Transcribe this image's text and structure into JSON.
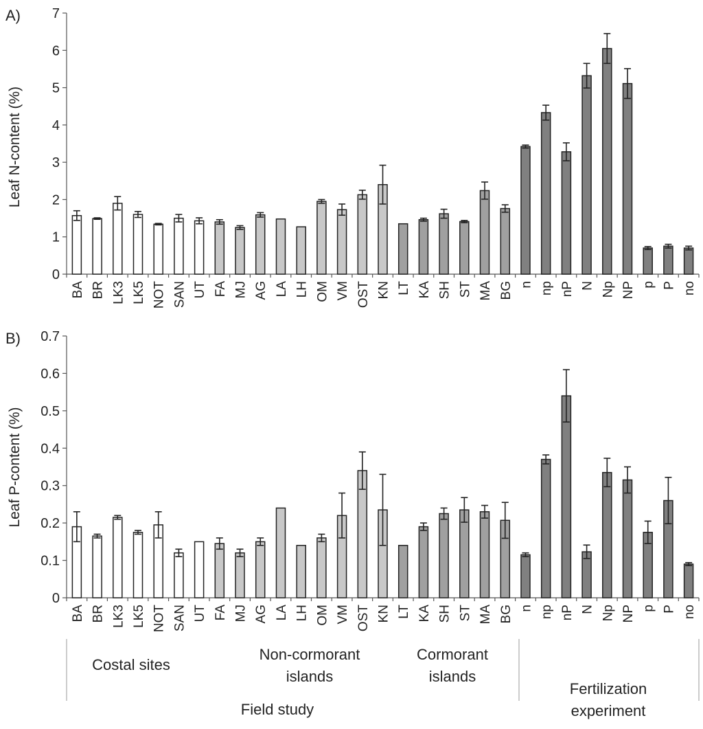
{
  "colors": {
    "coastal": "#ffffff",
    "noncormorant": "#c8c8c8",
    "cormorant": "#a0a0a0",
    "fertilization": "#808080",
    "stroke": "#222222"
  },
  "chart_data": [
    {
      "type": "bar",
      "panel_label": "A)",
      "ylabel": "Leaf N-content (%)",
      "ylim": [
        0,
        7
      ],
      "yticks": [
        "0",
        "1",
        "2",
        "3",
        "4",
        "5",
        "6",
        "7"
      ],
      "categories": [
        "BA",
        "BR",
        "LK3",
        "LK5",
        "NOT",
        "SAN",
        "UT",
        "FA",
        "MJ",
        "AG",
        "LA",
        "LH",
        "OM",
        "VM",
        "OST",
        "KN",
        "LT",
        "KA",
        "SH",
        "ST",
        "MA",
        "BG",
        "n",
        "np",
        "nP",
        "N",
        "Np",
        "NP",
        "p",
        "P",
        "no"
      ],
      "groups": [
        "coastal",
        "coastal",
        "coastal",
        "coastal",
        "coastal",
        "coastal",
        "coastal",
        "noncormorant",
        "noncormorant",
        "noncormorant",
        "noncormorant",
        "noncormorant",
        "noncormorant",
        "noncormorant",
        "noncormorant",
        "noncormorant",
        "cormorant",
        "cormorant",
        "cormorant",
        "cormorant",
        "cormorant",
        "cormorant",
        "fertilization",
        "fertilization",
        "fertilization",
        "fertilization",
        "fertilization",
        "fertilization",
        "fertilization",
        "fertilization",
        "fertilization"
      ],
      "values": [
        1.57,
        1.49,
        1.9,
        1.6,
        1.34,
        1.5,
        1.43,
        1.4,
        1.25,
        1.59,
        1.48,
        1.27,
        1.95,
        1.73,
        2.13,
        2.4,
        1.35,
        1.46,
        1.62,
        1.41,
        2.24,
        1.76,
        3.42,
        4.33,
        3.28,
        5.32,
        6.05,
        5.11,
        0.7,
        0.75,
        0.7
      ],
      "errors": [
        0.13,
        0.02,
        0.18,
        0.08,
        0.02,
        0.1,
        0.08,
        0.06,
        0.05,
        0.06,
        0.0,
        0.0,
        0.05,
        0.15,
        0.12,
        0.52,
        0.0,
        0.04,
        0.12,
        0.03,
        0.23,
        0.1,
        0.04,
        0.2,
        0.24,
        0.33,
        0.4,
        0.4,
        0.04,
        0.05,
        0.05
      ]
    },
    {
      "type": "bar",
      "panel_label": "B)",
      "ylabel": "Leaf P-content (%)",
      "ylim": [
        0,
        0.7
      ],
      "yticks": [
        "0",
        "0.1",
        "0.2",
        "0.3",
        "0.4",
        "0.5",
        "0.6",
        "0.7"
      ],
      "categories": [
        "BA",
        "BR",
        "LK3",
        "LK5",
        "NOT",
        "SAN",
        "UT",
        "FA",
        "MJ",
        "AG",
        "LA",
        "LH",
        "OM",
        "VM",
        "OST",
        "KN",
        "LT",
        "KA",
        "SH",
        "ST",
        "MA",
        "BG",
        "n",
        "np",
        "nP",
        "N",
        "Np",
        "NP",
        "p",
        "P",
        "no"
      ],
      "groups": [
        "coastal",
        "coastal",
        "coastal",
        "coastal",
        "coastal",
        "coastal",
        "coastal",
        "noncormorant",
        "noncormorant",
        "noncormorant",
        "noncormorant",
        "noncormorant",
        "noncormorant",
        "noncormorant",
        "noncormorant",
        "noncormorant",
        "cormorant",
        "cormorant",
        "cormorant",
        "cormorant",
        "cormorant",
        "cormorant",
        "fertilization",
        "fertilization",
        "fertilization",
        "fertilization",
        "fertilization",
        "fertilization",
        "fertilization",
        "fertilization",
        "fertilization"
      ],
      "values": [
        0.19,
        0.165,
        0.215,
        0.175,
        0.195,
        0.12,
        0.15,
        0.145,
        0.12,
        0.15,
        0.24,
        0.14,
        0.16,
        0.22,
        0.34,
        0.235,
        0.14,
        0.19,
        0.225,
        0.235,
        0.23,
        0.207,
        0.115,
        0.37,
        0.54,
        0.123,
        0.335,
        0.315,
        0.175,
        0.26,
        0.09
      ],
      "errors": [
        0.04,
        0.005,
        0.005,
        0.005,
        0.035,
        0.01,
        0.0,
        0.015,
        0.01,
        0.01,
        0.0,
        0.0,
        0.01,
        0.06,
        0.05,
        0.095,
        0.0,
        0.01,
        0.015,
        0.033,
        0.017,
        0.048,
        0.005,
        0.012,
        0.07,
        0.018,
        0.038,
        0.035,
        0.03,
        0.062,
        0.004
      ]
    }
  ],
  "group_labels": {
    "coastal": [
      "Costal sites"
    ],
    "noncormorant": [
      "Non-cormorant",
      "islands"
    ],
    "cormorant": [
      "Cormorant",
      "islands"
    ],
    "field": [
      "Field study"
    ],
    "fertilization": [
      "Fertilization",
      "experiment"
    ]
  }
}
